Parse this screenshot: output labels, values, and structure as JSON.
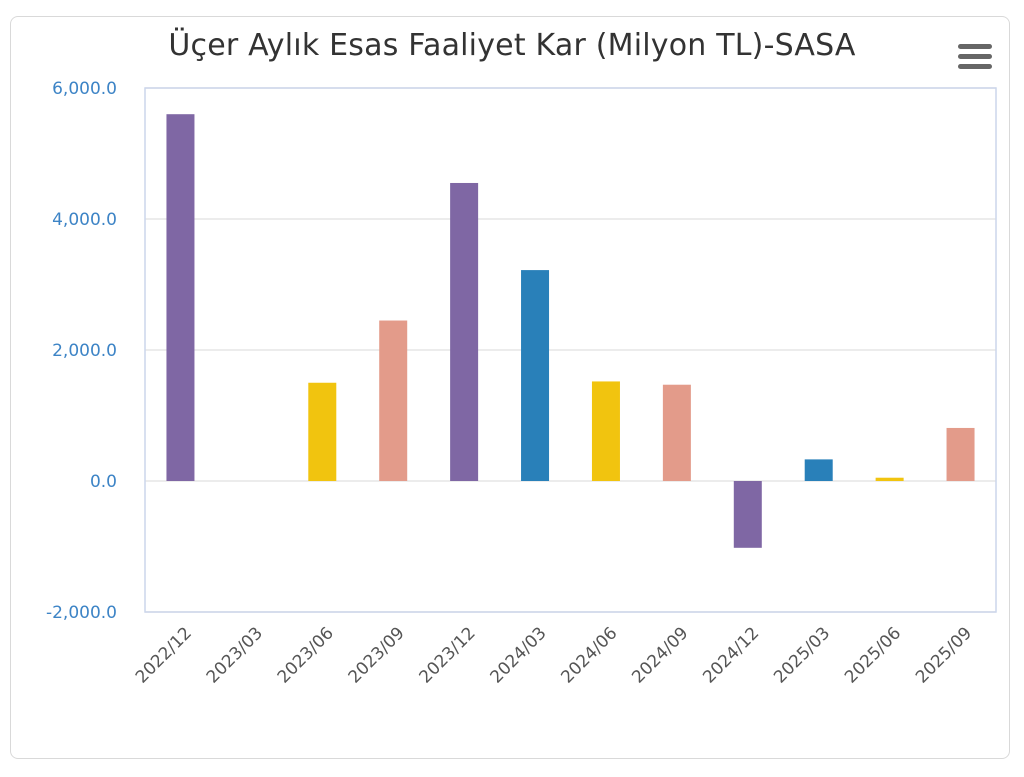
{
  "chart_data": {
    "type": "bar",
    "title": "Üçer Aylık Esas Faaliyet Kar (Milyon TL)-SASA",
    "xlabel": "",
    "ylabel": "",
    "ylim": [
      -2000,
      6000
    ],
    "yticks": [
      "6,000.0",
      "4,000.0",
      "2,000.0",
      "0.0",
      "-2,000.0"
    ],
    "ytick_values": [
      6000,
      4000,
      2000,
      0,
      -2000
    ],
    "categories": [
      "2022/12",
      "2023/03",
      "2023/06",
      "2023/09",
      "2023/12",
      "2024/03",
      "2024/06",
      "2024/09",
      "2024/12",
      "2025/03",
      "2025/06",
      "2025/09"
    ],
    "values": [
      5600,
      0,
      1500,
      2450,
      4550,
      3220,
      1520,
      1470,
      -1020,
      330,
      50,
      810
    ],
    "colors": [
      "#7f67a4",
      "#2980b9",
      "#f1c40f",
      "#e39b8a",
      "#7f67a4",
      "#2980b9",
      "#f1c40f",
      "#e39b8a",
      "#7f67a4",
      "#2980b9",
      "#f1c40f",
      "#e39b8a"
    ],
    "grid": true,
    "legend": "none"
  },
  "menu": {
    "icon": "hamburger-menu-icon"
  }
}
